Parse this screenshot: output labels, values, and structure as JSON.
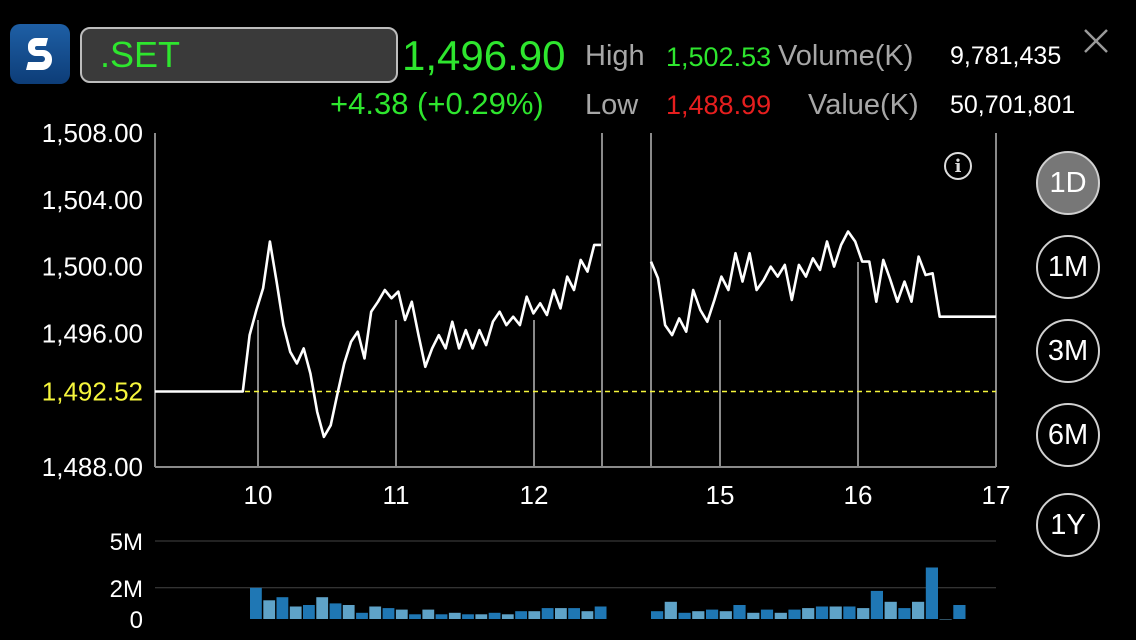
{
  "header": {
    "symbol": ".SET",
    "last_price": "1,496.90",
    "change": "+4.38 (+0.29%)",
    "high_label": "High",
    "high_value": "1,502.53",
    "low_label": "Low",
    "low_value": "1,488.99",
    "volume_label": "Volume(K)",
    "volume_value": "9,781,435",
    "value_label": "Value(K)",
    "value_value": "50,701,801"
  },
  "colors": {
    "up": "#2ee62e",
    "down": "#e61e1e",
    "reference": "#f5f53c",
    "bar_dark": "#1f77b4",
    "bar_light": "#5fa3c8"
  },
  "periods": [
    {
      "label": "1D",
      "active": true
    },
    {
      "label": "1M",
      "active": false
    },
    {
      "label": "3M",
      "active": false
    },
    {
      "label": "6M",
      "active": false
    },
    {
      "label": "1Y",
      "active": false
    }
  ],
  "icons": {
    "logo": "app-logo",
    "close": "close-icon",
    "info": "info-icon"
  },
  "chart_data": [
    {
      "type": "line",
      "ylim": [
        1488,
        1508
      ],
      "yticks": [
        {
          "value": 1508,
          "label": "1,508.00"
        },
        {
          "value": 1504,
          "label": "1,504.00"
        },
        {
          "value": 1500,
          "label": "1,500.00"
        },
        {
          "value": 1496,
          "label": "1,496.00"
        },
        {
          "value": 1488,
          "label": "1,488.00"
        }
      ],
      "reference_line": {
        "value": 1492.52,
        "label": "1,492.52"
      },
      "x_tick_labels": [
        "10",
        "11",
        "12",
        "15",
        "16",
        "17"
      ],
      "grid": true,
      "segments": [
        [
          1492.52,
          1492.52,
          1492.52,
          1492.52,
          1492.52,
          1492.52,
          1492.52,
          1492.52,
          1492.52,
          1492.52,
          1492.52,
          1492.52,
          1492.52,
          1492.52,
          1495.9,
          1497.4,
          1498.7,
          1501.5,
          1499.1,
          1496.5,
          1494.9,
          1494.2,
          1495.1,
          1493.6,
          1491.3,
          1489.8,
          1490.5,
          1492.4,
          1494.2,
          1495.5,
          1496.1,
          1494.5,
          1497.3,
          1497.9,
          1498.6,
          1498.1,
          1498.5,
          1496.8,
          1497.9,
          1495.9,
          1494.0,
          1495.1,
          1495.9,
          1495.1,
          1496.7,
          1495.1,
          1496.2,
          1495.1,
          1496.2,
          1495.3,
          1496.7,
          1497.3,
          1496.5,
          1497.0,
          1496.5,
          1498.2,
          1497.2,
          1497.8,
          1497.1,
          1498.6,
          1497.5,
          1499.4,
          1498.6,
          1500.4,
          1499.7,
          1501.3,
          1501.3
        ],
        [
          1500.3,
          1499.3,
          1496.5,
          1495.9,
          1496.9,
          1496.1,
          1498.6,
          1497.4,
          1496.7,
          1498.0,
          1499.4,
          1498.6,
          1500.8,
          1499.1,
          1500.8,
          1498.6,
          1499.2,
          1500.0,
          1499.4,
          1500.1,
          1498.0,
          1500.1,
          1499.4,
          1500.5,
          1499.8,
          1501.5,
          1500.0,
          1501.3,
          1502.1,
          1501.5,
          1500.3,
          1500.3,
          1497.9,
          1500.4,
          1499.2,
          1497.9,
          1499.1,
          1497.9,
          1500.6,
          1499.5,
          1499.6,
          1497.0,
          1497.0,
          1497.0,
          1497.0,
          1497.0,
          1497.0,
          1497.0,
          1497.0,
          1497.0
        ]
      ]
    },
    {
      "type": "bar",
      "ylim": [
        0,
        5
      ],
      "yticks": [
        {
          "value": 5,
          "label": "5M"
        },
        {
          "value": 2,
          "label": "2M"
        },
        {
          "value": 0,
          "label": "0"
        }
      ],
      "segments": [
        [
          2.0,
          1.2,
          1.4,
          0.8,
          0.9,
          1.4,
          1.0,
          0.9,
          0.4,
          0.8,
          0.7,
          0.6,
          0.3,
          0.6,
          0.3,
          0.4,
          0.3,
          0.3,
          0.4,
          0.3,
          0.5,
          0.5,
          0.7,
          0.7,
          0.7,
          0.5,
          0.8
        ],
        [
          0.5,
          1.1,
          0.4,
          0.5,
          0.6,
          0.5,
          0.9,
          0.4,
          0.6,
          0.4,
          0.6,
          0.7,
          0.8,
          0.8,
          0.8,
          0.7,
          1.8,
          1.1,
          0.7,
          1.1,
          3.3,
          0.0,
          0.9
        ]
      ]
    }
  ]
}
